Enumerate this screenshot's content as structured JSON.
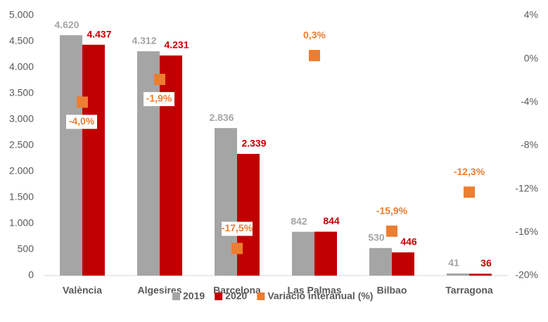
{
  "chart_data": {
    "type": "bar",
    "categories": [
      "València",
      "Algesires",
      "Barcelona",
      "Las Palmas",
      "Bilbao",
      "Tarragona"
    ],
    "series": [
      {
        "name": "2019",
        "color": "#A5A5A5",
        "values": [
          4620,
          4312,
          2836,
          842,
          530,
          41
        ],
        "value_labels": [
          "4.620",
          "4.312",
          "2.836",
          "842",
          "530",
          "41"
        ]
      },
      {
        "name": "2020",
        "color": "#C00000",
        "values": [
          4437,
          4231,
          2339,
          844,
          446,
          36
        ],
        "value_labels": [
          "4.437",
          "4.231",
          "2.339",
          "844",
          "446",
          "36"
        ]
      },
      {
        "name": "Variació interanual (%)",
        "color": "#ED7D31",
        "type": "scatter",
        "axis": "y2",
        "values": [
          -4.0,
          -1.9,
          -17.5,
          0.3,
          -15.9,
          -12.3
        ],
        "value_labels": [
          "-4,0%",
          "-1,9%",
          "-17,5%",
          "0,3%",
          "-15,9%",
          "-12,3%"
        ]
      }
    ],
    "ylim": [
      0,
      5000
    ],
    "yticks": [
      0,
      500,
      {
        "value": 1000,
        "label": "1.000"
      },
      {
        "value": 1500,
        "label": "1.500"
      },
      {
        "value": 2000,
        "label": "2.000"
      },
      {
        "value": 2500,
        "label": "2.500"
      },
      {
        "value": 3000,
        "label": "3.000"
      },
      {
        "value": 3500,
        "label": "3.500"
      },
      {
        "value": 4000,
        "label": "4.000"
      },
      {
        "value": 4500,
        "label": "4.500"
      },
      {
        "value": 5000,
        "label": "5.000"
      }
    ],
    "y2lim": [
      -20,
      4
    ],
    "y2ticks": [
      {
        "value": -20,
        "label": "-20%"
      },
      {
        "value": -16,
        "label": "-16%"
      },
      {
        "value": -12,
        "label": "-12%"
      },
      {
        "value": -8,
        "label": "-8%"
      },
      {
        "value": -4,
        "label": "-4%"
      },
      {
        "value": 0,
        "label": "0%"
      },
      {
        "value": 4,
        "label": "4%"
      }
    ],
    "legend": "bottom"
  }
}
